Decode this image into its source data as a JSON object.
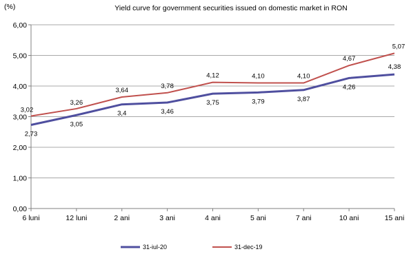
{
  "chart_data": {
    "type": "line",
    "title": "Yield curve for government securities issued on  domestic market in RON",
    "ylabel": "(%)",
    "xlabel": "",
    "categories": [
      "6 luni",
      "12 luni",
      "2 ani",
      "3 ani",
      "4 ani",
      "5 ani",
      "7 ani",
      "10 ani",
      "15 ani"
    ],
    "ylim": [
      0,
      6
    ],
    "yticks": [
      "0,00",
      "1,00",
      "2,00",
      "3,00",
      "4,00",
      "5,00",
      "6,00"
    ],
    "grid": "horizontal",
    "legend_position": "bottom",
    "series": [
      {
        "name": "31-iul-20",
        "color": "#4F4F9F",
        "values": [
          2.73,
          3.05,
          3.4,
          3.46,
          3.75,
          3.79,
          3.87,
          4.26,
          4.38
        ],
        "labels": [
          "2,73",
          "3,05",
          "3,4",
          "3,46",
          "3,75",
          "3,79",
          "3,87",
          "4,26",
          "4,38"
        ]
      },
      {
        "name": "31-dec-19",
        "color": "#C0504D",
        "values": [
          3.02,
          3.26,
          3.64,
          3.78,
          4.12,
          4.1,
          4.1,
          4.67,
          5.07
        ],
        "labels": [
          "3,02",
          "3,26",
          "3,64",
          "3,78",
          "4,12",
          "4,10",
          "4,10",
          "4,67",
          "5,07"
        ]
      }
    ]
  }
}
